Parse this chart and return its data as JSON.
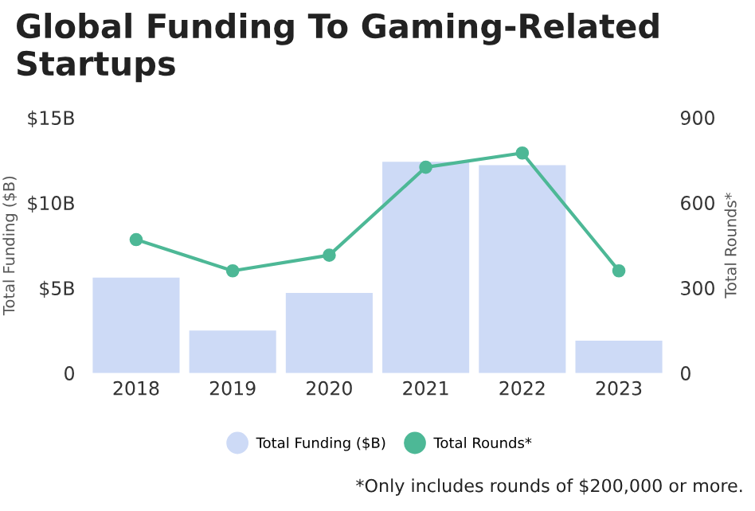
{
  "chart_data": {
    "type": "bar",
    "title": "Global Funding To Gaming-Related\nStartups",
    "categories": [
      "2018",
      "2019",
      "2020",
      "2021",
      "2022",
      "2023"
    ],
    "series": [
      {
        "name": "Total Funding ($B)",
        "color": "#cddaf6",
        "values": [
          5.6,
          2.5,
          4.7,
          12.4,
          12.2,
          1.9
        ]
      },
      {
        "name": "Total Rounds*",
        "type": "line",
        "axis": "y2",
        "color": "#4db896",
        "marker": "circle",
        "values": [
          470,
          360,
          415,
          725,
          775,
          360
        ]
      }
    ],
    "ylabel": "Total Funding ($B)",
    "y2label": "Total Rounds*",
    "ylim": [
      0,
      15
    ],
    "yticks": [
      0,
      {
        "value": 5,
        "label": "$5B"
      },
      {
        "value": 10,
        "label": "$10B"
      },
      {
        "value": 15,
        "label": "$15B"
      }
    ],
    "y2lim": [
      0,
      900
    ],
    "y2ticks": [
      0,
      300,
      600,
      900
    ],
    "legend": "bottom",
    "grid": false,
    "annotations": [
      "*Only includes rounds of $200,000 or more."
    ]
  }
}
